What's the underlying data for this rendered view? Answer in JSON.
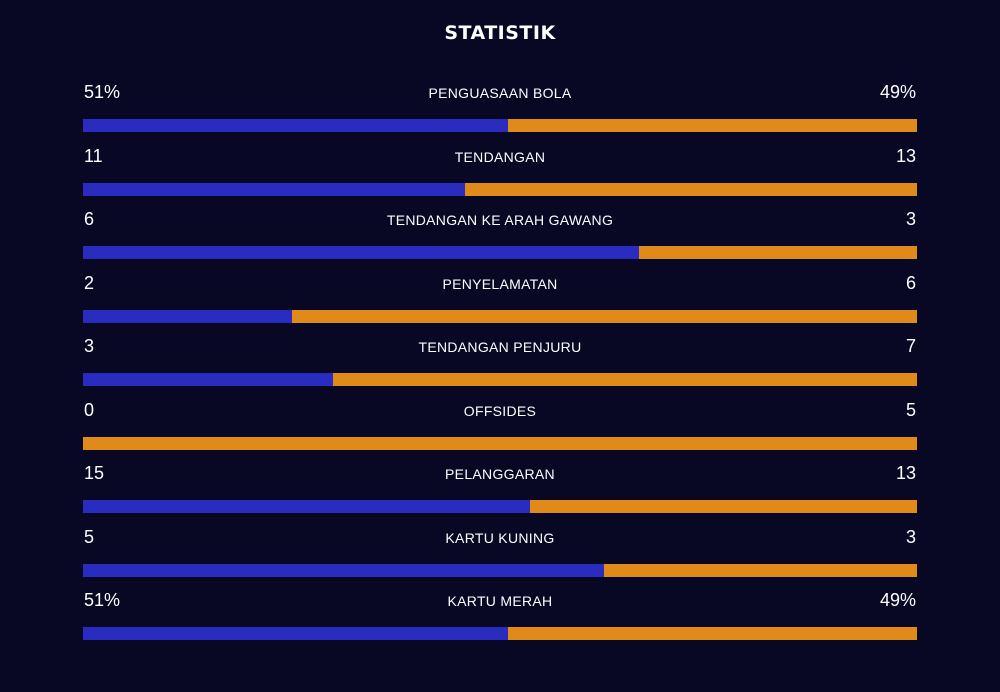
{
  "title": "STATISTIK",
  "colors": {
    "background": "#080724",
    "home_bar": "#2a2bbf",
    "away_bar": "#e08a19",
    "text": "#ffffff"
  },
  "stats": [
    {
      "label": "PENGUASAAN BOLA",
      "home": "51%",
      "away": "49%",
      "home_share": 0.51
    },
    {
      "label": "TENDANGAN",
      "home": "11",
      "away": "13",
      "home_share": 0.458
    },
    {
      "label": "TENDANGAN KE ARAH GAWANG",
      "home": "6",
      "away": "3",
      "home_share": 0.667
    },
    {
      "label": "PENYELAMATAN",
      "home": "2",
      "away": "6",
      "home_share": 0.25
    },
    {
      "label": "TENDANGAN PENJURU",
      "home": "3",
      "away": "7",
      "home_share": 0.3
    },
    {
      "label": "OFFSIDES",
      "home": "0",
      "away": "5",
      "home_share": 0
    },
    {
      "label": "PELANGGARAN",
      "home": "15",
      "away": "13",
      "home_share": 0.536
    },
    {
      "label": "KARTU KUNING",
      "home": "5",
      "away": "3",
      "home_share": 0.625
    },
    {
      "label": "KARTU MERAH",
      "home": "51%",
      "away": "49%",
      "home_share": 0.51
    }
  ]
}
